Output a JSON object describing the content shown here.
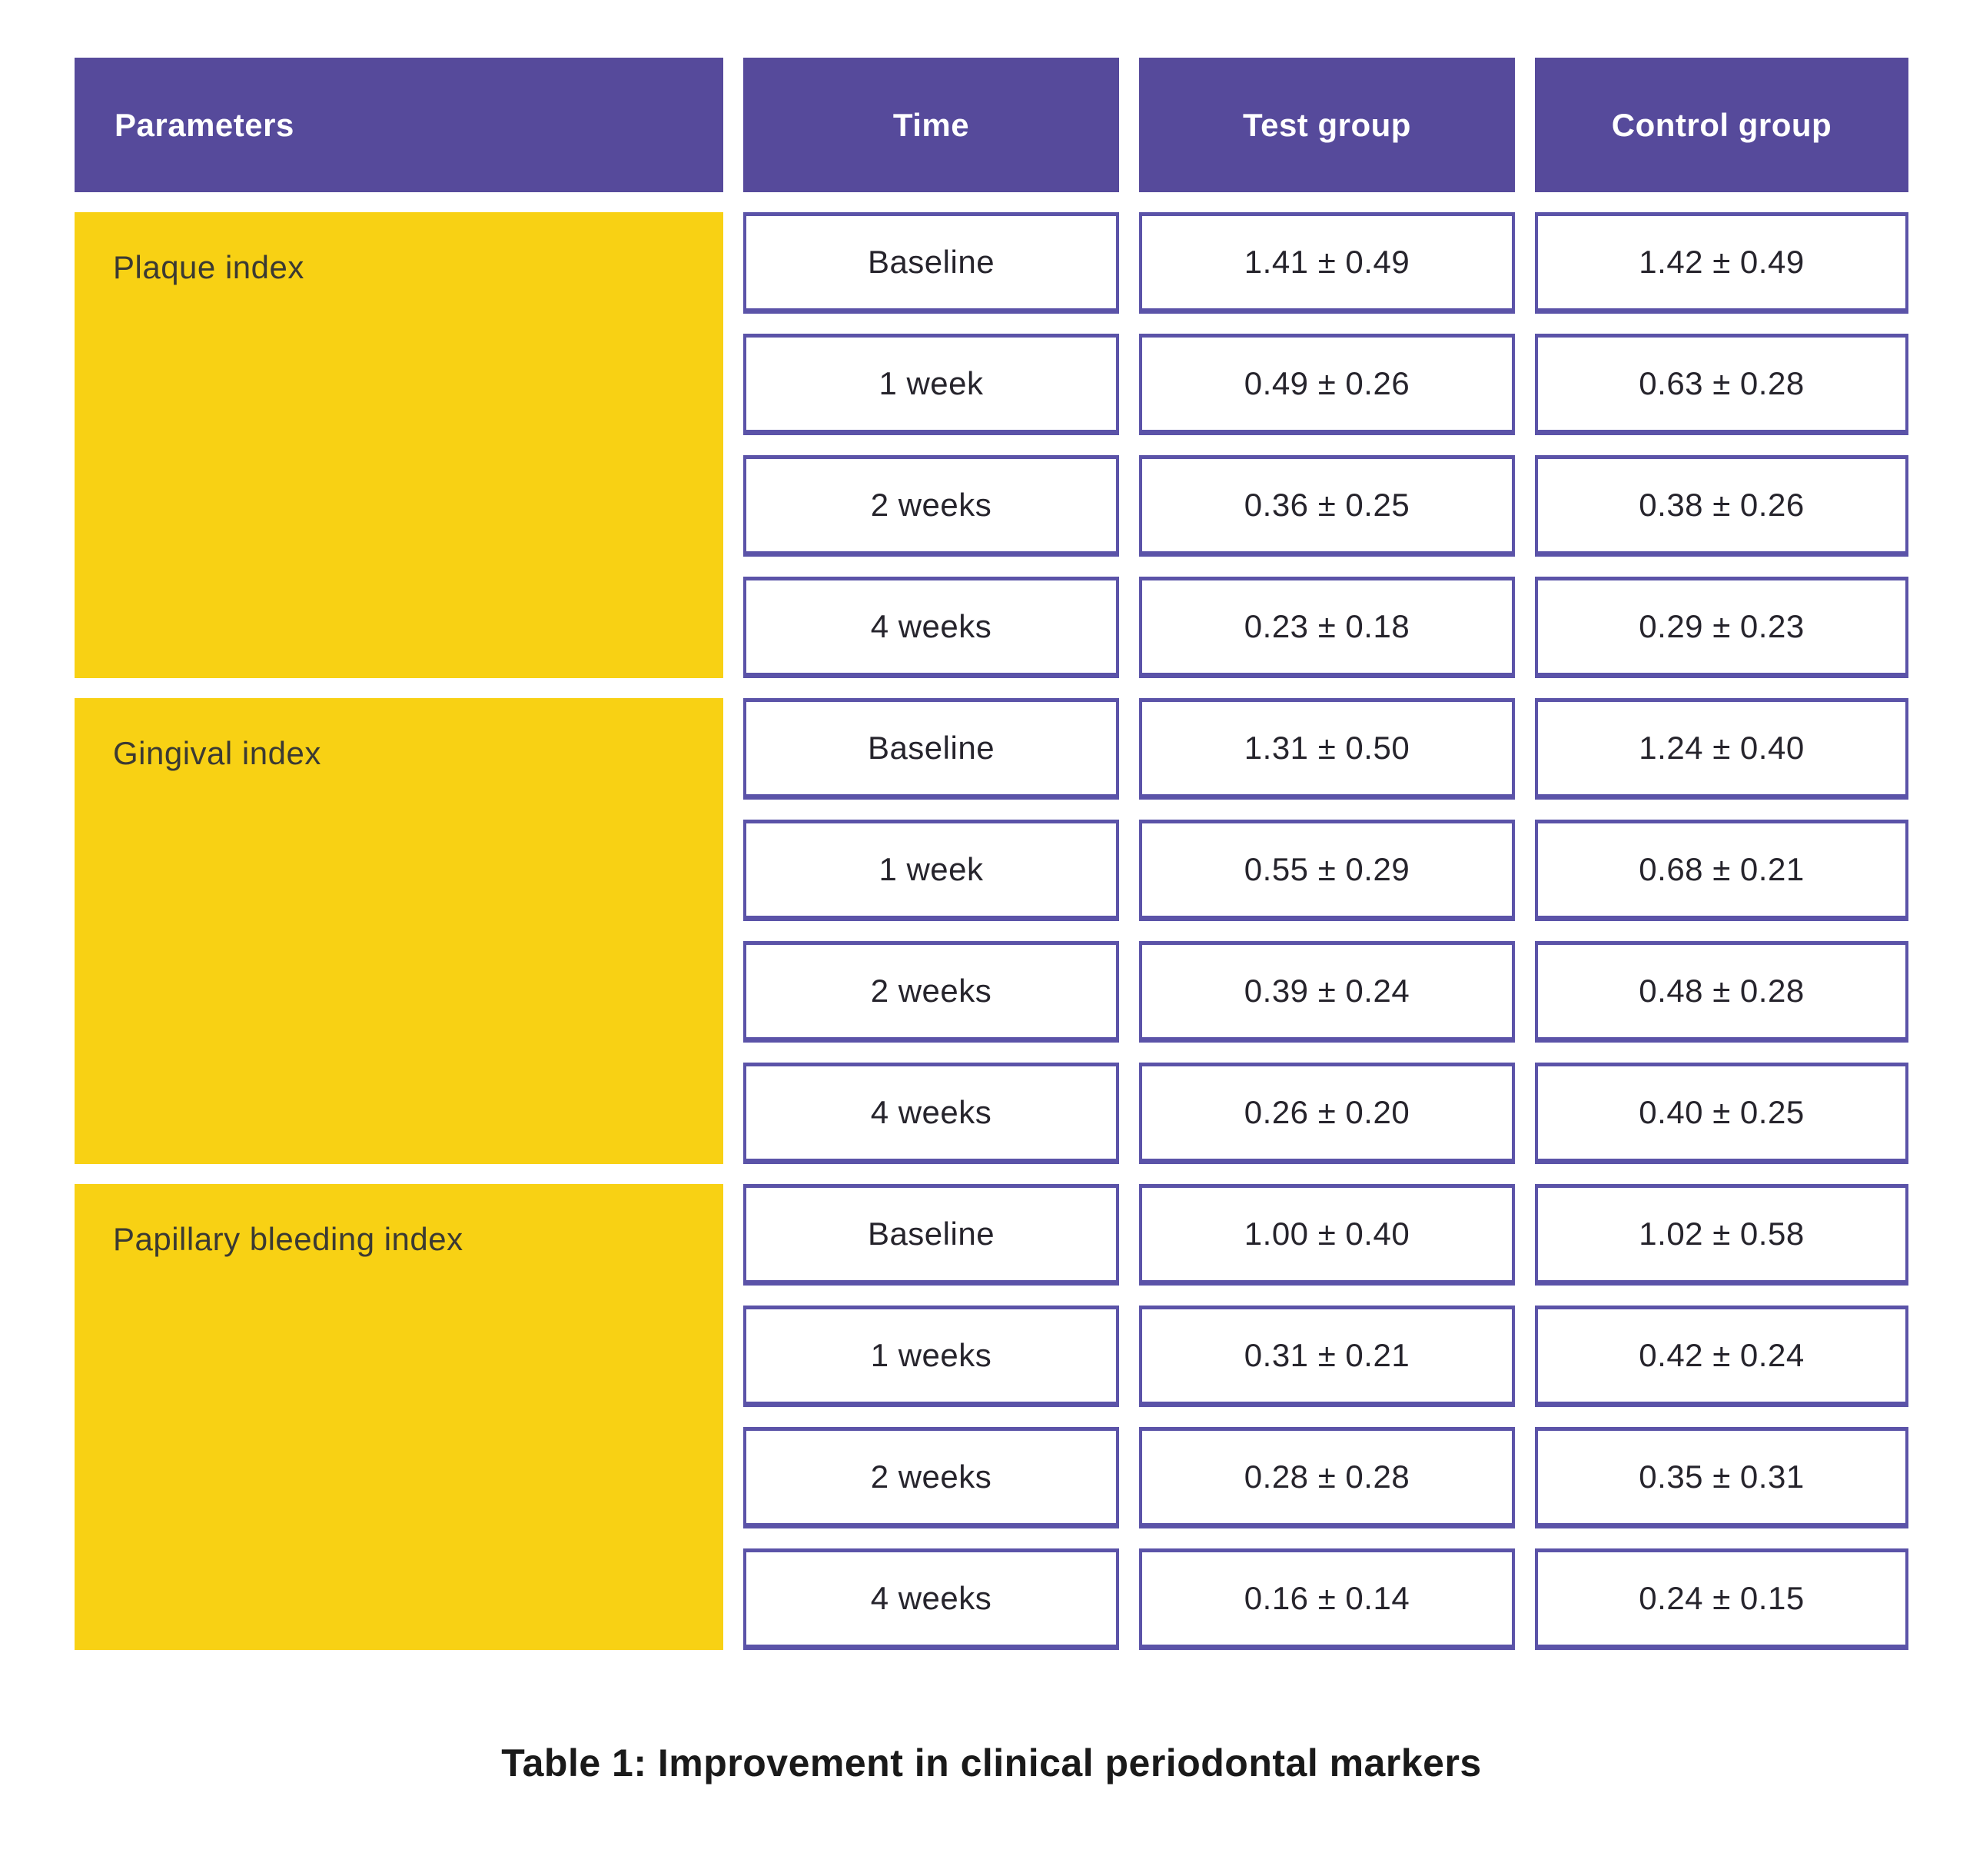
{
  "table": {
    "headers": {
      "parameters": "Parameters",
      "time": "Time",
      "test": "Test group",
      "control": "Control group"
    },
    "sections": [
      {
        "parameter": "Plaque index",
        "rows": [
          {
            "time": "Baseline",
            "test": "1.41 ± 0.49",
            "control": "1.42 ± 0.49"
          },
          {
            "time": "1 week",
            "test": "0.49 ± 0.26",
            "control": "0.63 ± 0.28"
          },
          {
            "time": "2 weeks",
            "test": "0.36 ± 0.25",
            "control": "0.38 ± 0.26"
          },
          {
            "time": "4 weeks",
            "test": "0.23 ± 0.18",
            "control": "0.29 ± 0.23"
          }
        ]
      },
      {
        "parameter": "Gingival index",
        "rows": [
          {
            "time": "Baseline",
            "test": "1.31 ± 0.50",
            "control": "1.24 ± 0.40"
          },
          {
            "time": "1 week",
            "test": "0.55 ± 0.29",
            "control": "0.68 ± 0.21"
          },
          {
            "time": "2 weeks",
            "test": "0.39 ± 0.24",
            "control": "0.48 ± 0.28"
          },
          {
            "time": "4 weeks",
            "test": "0.26 ± 0.20",
            "control": "0.40 ± 0.25"
          }
        ]
      },
      {
        "parameter": "Papillary bleeding index",
        "rows": [
          {
            "time": "Baseline",
            "test": "1.00 ± 0.40",
            "control": "1.02 ± 0.58"
          },
          {
            "time": "1 weeks",
            "test": "0.31 ± 0.21",
            "control": "0.42 ± 0.24"
          },
          {
            "time": "2 weeks",
            "test": "0.28 ± 0.28",
            "control": "0.35 ± 0.31"
          },
          {
            "time": "4 weeks",
            "test": "0.16 ± 0.14",
            "control": "0.24 ± 0.15"
          }
        ]
      }
    ],
    "caption": "Table 1: Improvement in clinical periodontal markers"
  },
  "colors": {
    "header_purple": "#564A9B",
    "cell_border_purple": "#5B53A8",
    "parameter_yellow": "#F8D114",
    "header_text": "#FFFFFF",
    "body_text": "#26242C",
    "caption_text": "#1A1A1A"
  }
}
